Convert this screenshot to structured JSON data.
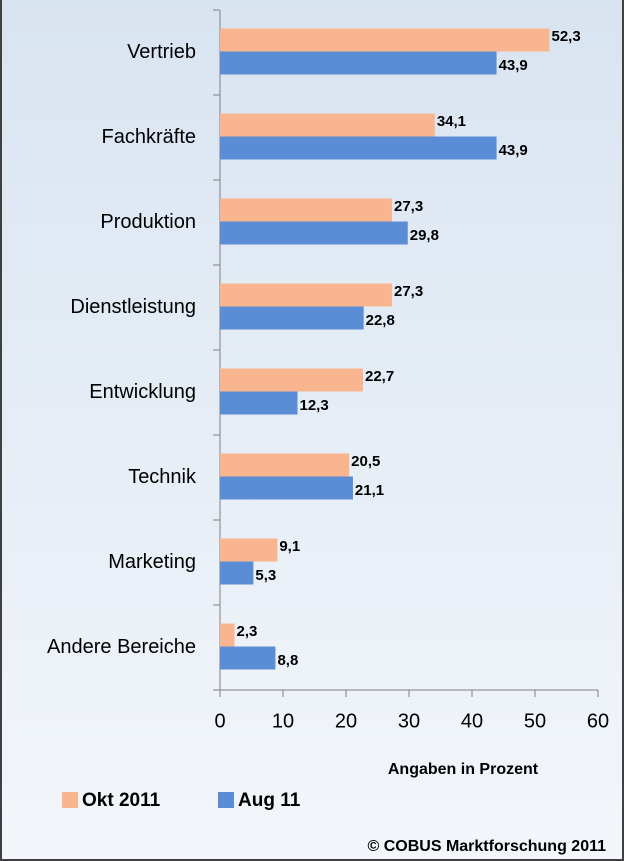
{
  "chart_data": {
    "type": "bar",
    "orientation": "horizontal",
    "categories": [
      "Vertrieb",
      "Fachkräfte",
      "Produktion",
      "Dienstleistung",
      "Entwicklung",
      "Technik",
      "Marketing",
      "Andere Bereiche"
    ],
    "series": [
      {
        "name": "Okt 2011",
        "color": "#f9b58f",
        "values": [
          52.3,
          34.1,
          27.3,
          27.3,
          22.7,
          20.5,
          9.1,
          2.3
        ],
        "value_labels": [
          "52,3",
          "34,1",
          "27,3",
          "27,3",
          "22,7",
          "20,5",
          "9,1",
          "2,3"
        ]
      },
      {
        "name": "Aug 11",
        "color": "#5a8dd5",
        "values": [
          43.9,
          43.9,
          29.8,
          22.8,
          12.3,
          21.1,
          5.3,
          8.8
        ],
        "value_labels": [
          "43,9",
          "43,9",
          "29,8",
          "22,8",
          "12,3",
          "21,1",
          "5,3",
          "8,8"
        ]
      }
    ],
    "xlim": [
      0,
      60
    ],
    "xticks": [
      0,
      10,
      20,
      30,
      40,
      50,
      60
    ],
    "xlabel": "Angaben in Prozent",
    "source": "© COBUS Marktforschung 2011",
    "legend": "bottom-left"
  }
}
